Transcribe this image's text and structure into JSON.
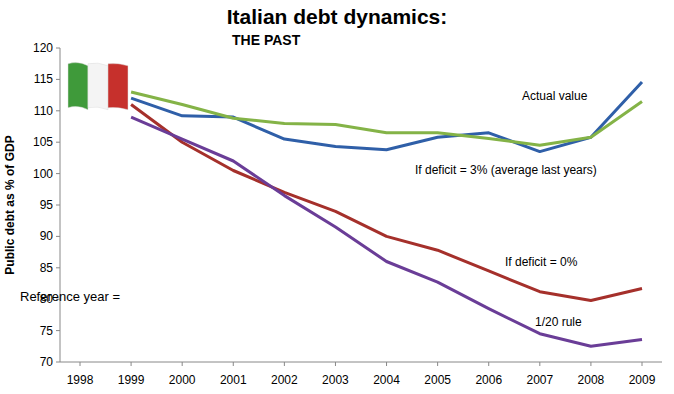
{
  "chart_data": {
    "type": "line",
    "title": "Italian debt dynamics:",
    "subtitle": "THE PAST",
    "y_label": "Public debt as % of GDP",
    "annotations": [
      "Reference year ="
    ],
    "categories": [
      "1998",
      "1999",
      "2000",
      "2001",
      "2002",
      "2003",
      "2004",
      "2005",
      "2006",
      "2007",
      "2008",
      "2009"
    ],
    "series": [
      {
        "name": "Actual value",
        "color": "#2f5fa8",
        "values": [
          null,
          112,
          109.2,
          109,
          105.5,
          104.3,
          103.8,
          105.8,
          106.5,
          103.5,
          105.8,
          114.6
        ]
      },
      {
        "name": "If deficit = 3% (average last years)",
        "color": "#84b347",
        "values": [
          null,
          113,
          111,
          108.8,
          108,
          107.8,
          106.5,
          106.5,
          105.6,
          104.5,
          105.8,
          111.5
        ]
      },
      {
        "name": "If deficit = 0%",
        "color": "#a5302b",
        "values": [
          null,
          111,
          105,
          100.5,
          97,
          94,
          90,
          87.8,
          84.5,
          81.2,
          79.8,
          81.7
        ]
      },
      {
        "name": "1/20 rule",
        "color": "#6a3d97",
        "values": [
          null,
          109,
          105.5,
          102,
          96.5,
          91.5,
          86,
          82.7,
          78.5,
          74.5,
          72.5,
          73.6
        ]
      }
    ],
    "ylim": [
      70,
      120
    ],
    "yticks": [
      70,
      75,
      80,
      85,
      90,
      95,
      100,
      105,
      110,
      115,
      120
    ],
    "grid": false
  }
}
